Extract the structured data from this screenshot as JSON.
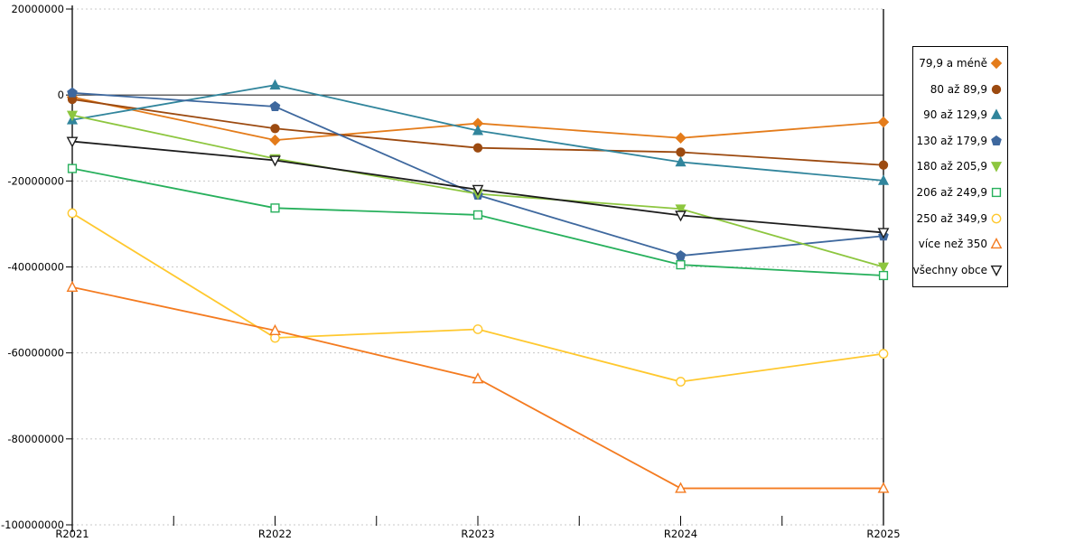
{
  "chart_data": {
    "type": "line",
    "title": "",
    "xlabel": "",
    "ylabel": "",
    "categories": [
      "R2021",
      "R2022",
      "R2023",
      "R2024",
      "R2025"
    ],
    "ylim": [
      -100000000,
      20000000
    ],
    "ytick_labels": [
      "20000000",
      "0",
      "-20000000",
      "-40000000",
      "-60000000",
      "-80000000",
      "-100000000"
    ],
    "yticks": [
      20000000,
      0,
      -20000000,
      -40000000,
      -60000000,
      -80000000,
      -100000000
    ],
    "grid": "horizontal-dashed",
    "legend_position": "right",
    "zero_line": true,
    "colors": {
      "gridline": "#C8C8C8",
      "axis": "#000000",
      "zero_line": "#303030"
    },
    "series": [
      {
        "name": "79,9 a méně",
        "color": "#E47C1B",
        "marker": "diamond",
        "marker_fill": "filled",
        "values": [
          -500000,
          -10500000,
          -6600000,
          -10000000,
          -6300000
        ]
      },
      {
        "name": "80 až 89,9",
        "color": "#9C4A10",
        "marker": "circle",
        "marker_fill": "filled",
        "values": [
          -1000000,
          -7800000,
          -12300000,
          -13300000,
          -16300000
        ]
      },
      {
        "name": "90 až 129,9",
        "color": "#31859C",
        "marker": "triangle-up",
        "marker_fill": "filled",
        "values": [
          -5800000,
          2300000,
          -8300000,
          -15600000,
          -19900000
        ]
      },
      {
        "name": "130 až 179,9",
        "color": "#3E689E",
        "marker": "pentagon",
        "marker_fill": "filled",
        "values": [
          500000,
          -2700000,
          -23300000,
          -37400000,
          -32800000
        ]
      },
      {
        "name": "180 až 205,9",
        "color": "#8DC63F",
        "marker": "triangle-down",
        "marker_fill": "filled",
        "values": [
          -4700000,
          -14800000,
          -23000000,
          -26500000,
          -40000000
        ]
      },
      {
        "name": "206 až 249,9",
        "color": "#27B05C",
        "marker": "square",
        "marker_fill": "open",
        "values": [
          -17100000,
          -26300000,
          -27900000,
          -39500000,
          -42000000
        ]
      },
      {
        "name": "250 až 349,9",
        "color": "#FFC82E",
        "marker": "circle",
        "marker_fill": "open",
        "values": [
          -27500000,
          -56500000,
          -54500000,
          -66700000,
          -60200000
        ]
      },
      {
        "name": "více než 350",
        "color": "#F47B20",
        "marker": "triangle-up",
        "marker_fill": "open",
        "values": [
          -44700000,
          -54800000,
          -66000000,
          -91500000,
          -91500000
        ]
      },
      {
        "name": "všechny obce",
        "color": "#1C1C1C",
        "marker": "triangle-down",
        "marker_fill": "open",
        "values": [
          -10800000,
          -15200000,
          -22000000,
          -28000000,
          -32000000
        ]
      }
    ]
  }
}
